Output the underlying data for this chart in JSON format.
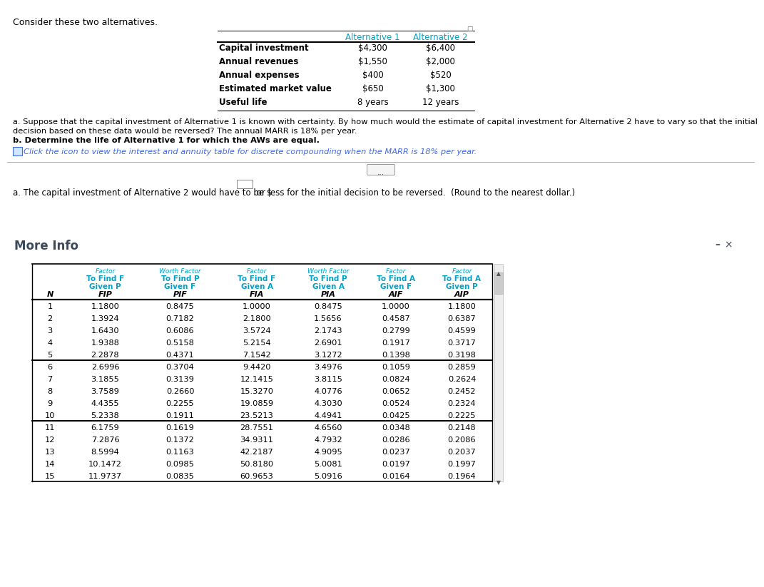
{
  "title_text": "Consider these two alternatives.",
  "top_table_headers": [
    "",
    "Alternative 1",
    "Alternative 2"
  ],
  "top_table_rows": [
    [
      "Capital investment",
      "$4,300",
      "$6,400"
    ],
    [
      "Annual revenues",
      "$1,550",
      "$2,000"
    ],
    [
      "Annual expenses",
      "$400",
      "$520"
    ],
    [
      "Estimated market value",
      "$650",
      "$1,300"
    ],
    [
      "Useful life",
      "8 years",
      "12 years"
    ]
  ],
  "question_a1": "a. Suppose that the capital investment of Alternative 1 is known with certainty. By how much would the estimate of capital investment for Alternative 2 have to vary so that the initial",
  "question_a2": "decision based on these data would be reversed? The annual MARR is 18% per year.",
  "question_b": "b. Determine the life of Alternative 1 for which the AWs are equal.",
  "click_text": "Click the icon to view the interest and annuity table for discrete compounding when the MARR is 18% per year.",
  "answer_prefix": "a. The capital investment of Alternative 2 would have to be $",
  "answer_suffix": " or less for the initial decision to be reversed.  (Round to the nearest dollar.)",
  "more_info_title": "More Info",
  "table_hdr1": [
    "Factor",
    "Worth Factor",
    "Factor",
    "Worth Factor",
    "Factor",
    "Factor"
  ],
  "table_hdr2": [
    "To Find F",
    "To Find P",
    "To Find F",
    "To Find P",
    "To Find A",
    "To Find A"
  ],
  "table_hdr3": [
    "Given P",
    "Given F",
    "Given A",
    "Given A",
    "Given F",
    "Given P"
  ],
  "table_hdr4": [
    "FIP",
    "PIF",
    "FIA",
    "PIA",
    "AIF",
    "AIP"
  ],
  "N_col": [
    1,
    2,
    3,
    4,
    5,
    6,
    7,
    8,
    9,
    10,
    11,
    12,
    13,
    14,
    15
  ],
  "FIP": [
    1.18,
    1.3924,
    1.643,
    1.9388,
    2.2878,
    2.6996,
    3.1855,
    3.7589,
    4.4355,
    5.2338,
    6.1759,
    7.2876,
    8.5994,
    10.1472,
    11.9737
  ],
  "PIF": [
    0.8475,
    0.7182,
    0.6086,
    0.5158,
    0.4371,
    0.3704,
    0.3139,
    0.266,
    0.2255,
    0.1911,
    0.1619,
    0.1372,
    0.1163,
    0.0985,
    0.0835
  ],
  "FIA": [
    1.0,
    2.18,
    3.5724,
    5.2154,
    7.1542,
    9.442,
    12.1415,
    15.327,
    19.0859,
    23.5213,
    28.7551,
    34.9311,
    42.2187,
    50.818,
    60.9653
  ],
  "PIA": [
    0.8475,
    1.5656,
    2.1743,
    2.6901,
    3.1272,
    3.4976,
    3.8115,
    4.0776,
    4.303,
    4.4941,
    4.656,
    4.7932,
    4.9095,
    5.0081,
    5.0916
  ],
  "AIF": [
    1.0,
    0.4587,
    0.2799,
    0.1917,
    0.1398,
    0.1059,
    0.0824,
    0.0652,
    0.0524,
    0.0425,
    0.0348,
    0.0286,
    0.0237,
    0.0197,
    0.0164
  ],
  "AIP": [
    1.18,
    0.6387,
    0.4599,
    0.3717,
    0.3198,
    0.2859,
    0.2624,
    0.2452,
    0.2324,
    0.2225,
    0.2148,
    0.2086,
    0.2037,
    0.1997,
    0.1964
  ],
  "cyan_color": "#00A0C8",
  "dark_color": "#3B4A5A",
  "text_color": "#000000",
  "bg_color": "#FFFFFF",
  "icon_color": "#4169E1",
  "gray_line": "#AAAAAA"
}
